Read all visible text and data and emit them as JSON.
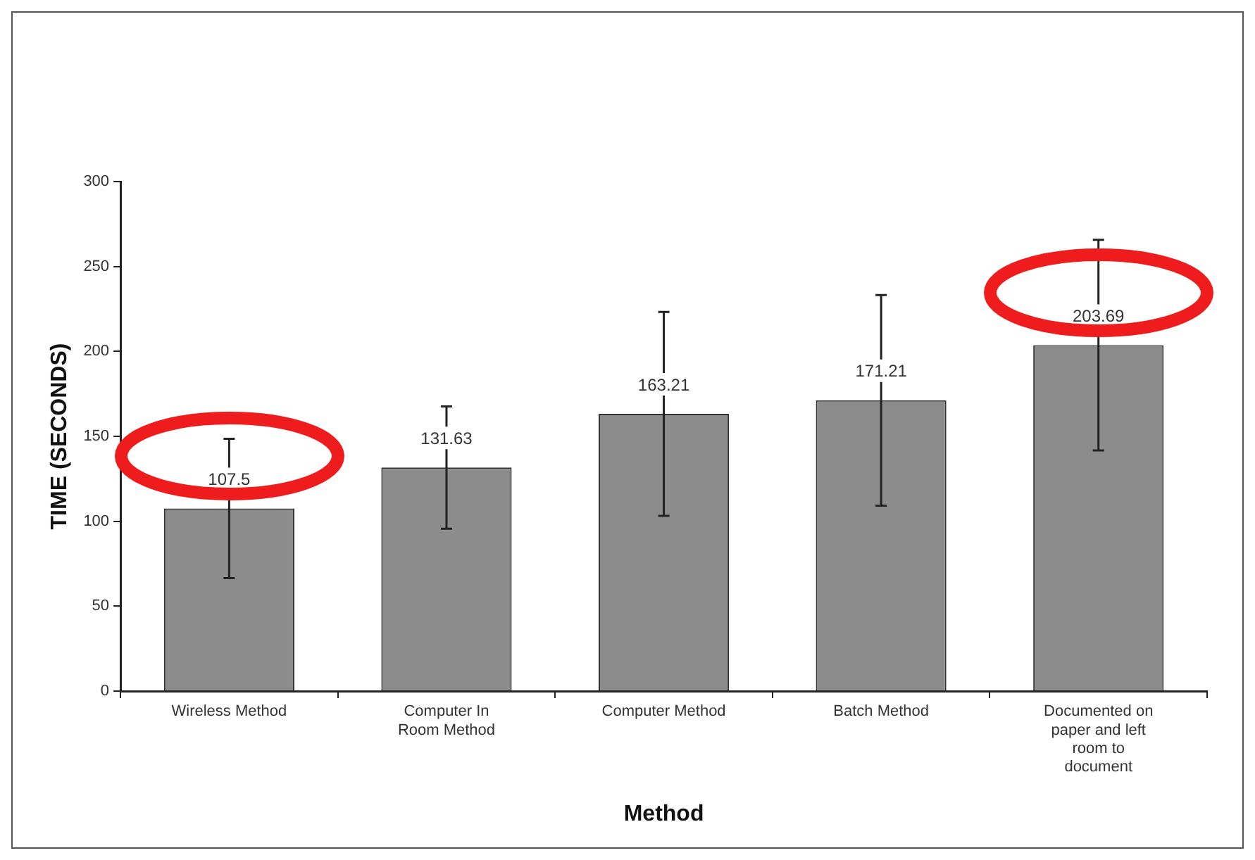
{
  "chart_data": {
    "type": "bar",
    "xlabel": "Method",
    "ylabel": "TIME (SECONDS)",
    "categories": [
      "Wireless Method",
      "Computer In Room Method",
      "Computer Method",
      "Batch Method",
      "Documented on paper and left room to document"
    ],
    "values": [
      107.5,
      131.63,
      163.21,
      171.21,
      203.69
    ],
    "errors": [
      41,
      36,
      60,
      62,
      62
    ],
    "color": "#8c8c8c",
    "ylim": [
      0,
      300
    ],
    "yticks": [
      0,
      50,
      100,
      150,
      200,
      250,
      300
    ],
    "data_labels": true,
    "grid": false,
    "legend": false
  }
}
